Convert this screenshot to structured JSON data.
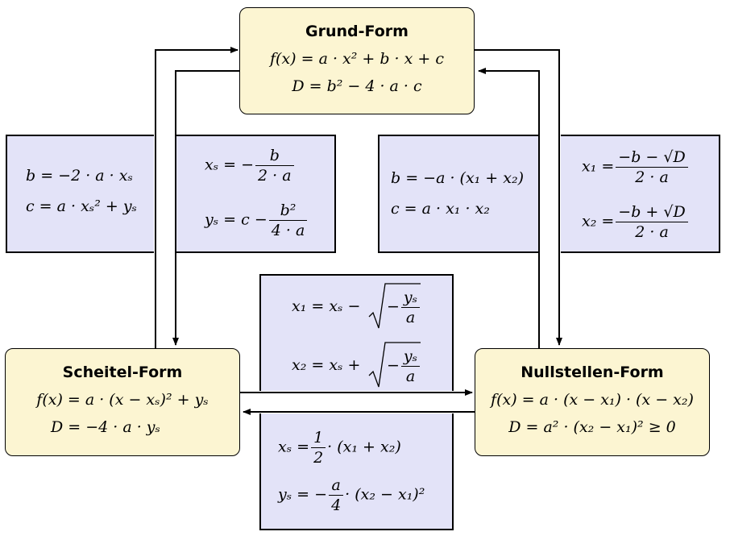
{
  "grund": {
    "title": "Grund-Form",
    "eq1": "f(x) = a · x² + b · x + c",
    "eq2": "D = b² − 4 · a · c"
  },
  "scheitel": {
    "title": "Scheitel-Form",
    "eq1": "f(x) = a · (x − xₛ)² + yₛ",
    "eq2": "D = −4 · a · yₛ"
  },
  "nullstellen": {
    "title": "Nullstellen-Form",
    "eq1": "f(x) = a · (x − x₁) · (x − x₂)",
    "eq2": "D = a² · (x₂ − x₁)² ≥ 0"
  },
  "scheitel_to_grund": {
    "eq1": "b = −2 · a · xₛ",
    "eq2": "c = a · xₛ² + yₛ"
  },
  "grund_to_scheitel": {
    "xs_lhs": "xₛ = −",
    "xs_num": "b",
    "xs_den": "2 · a",
    "ys_lhs": "yₛ = c −",
    "ys_num": "b²",
    "ys_den": "4 · a"
  },
  "null_to_grund": {
    "eq1": "b = −a · (x₁ + x₂)",
    "eq2": "c = a · x₁ · x₂"
  },
  "grund_to_null": {
    "x1_lhs": "x₁ =",
    "x1_num": "−b − √D",
    "x1_den": "2 · a",
    "x2_lhs": "x₂ =",
    "x2_num": "−b + √D",
    "x2_den": "2 · a"
  },
  "scheitel_to_null": {
    "x1_lhs": "x₁ = xₛ −",
    "x1_num": "yₛ",
    "x1_den": "a",
    "x2_lhs": "x₂ = xₛ +",
    "x2_num": "yₛ",
    "x2_den": "a",
    "minus": "−"
  },
  "null_to_scheitel": {
    "xs_lhs": "xₛ =",
    "xs_num": "1",
    "xs_den": "2",
    "xs_rhs": "· (x₁ + x₂)",
    "ys_lhs": "yₛ = −",
    "ys_num": "a",
    "ys_den": "4",
    "ys_rhs": "· (x₂ − x₁)²"
  }
}
